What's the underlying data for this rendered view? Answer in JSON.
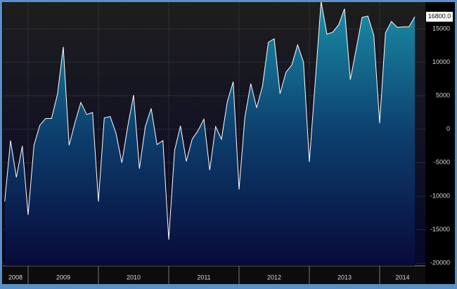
{
  "chart_data": {
    "type": "area",
    "x": [
      2008.667,
      2008.75,
      2008.833,
      2008.917,
      2009.0,
      2009.083,
      2009.167,
      2009.25,
      2009.333,
      2009.417,
      2009.5,
      2009.583,
      2009.667,
      2009.75,
      2009.833,
      2009.917,
      2010.0,
      2010.083,
      2010.167,
      2010.25,
      2010.333,
      2010.417,
      2010.5,
      2010.583,
      2010.667,
      2010.75,
      2010.833,
      2010.917,
      2011.0,
      2011.083,
      2011.167,
      2011.25,
      2011.333,
      2011.417,
      2011.5,
      2011.583,
      2011.667,
      2011.75,
      2011.833,
      2011.917,
      2012.0,
      2012.083,
      2012.167,
      2012.25,
      2012.333,
      2012.417,
      2012.5,
      2012.583,
      2012.667,
      2012.75,
      2012.833,
      2012.917,
      2013.0,
      2013.083,
      2013.167,
      2013.25,
      2013.333,
      2013.417,
      2013.5,
      2013.583,
      2013.667,
      2013.75,
      2013.833,
      2013.917,
      2014.0,
      2014.083,
      2014.167,
      2014.25,
      2014.333,
      2014.417,
      2014.5
    ],
    "values": [
      -10800,
      -1700,
      -7200,
      -2500,
      -12800,
      -2400,
      600,
      1600,
      1600,
      5200,
      12300,
      -2400,
      1000,
      4000,
      2200,
      2500,
      -10800,
      1700,
      1900,
      -600,
      -5000,
      400,
      5100,
      -5900,
      400,
      3100,
      -2300,
      -1700,
      -16500,
      -3200,
      500,
      -4800,
      -1500,
      -200,
      1500,
      -6100,
      400,
      -1500,
      4100,
      7100,
      -9000,
      1800,
      6800,
      3200,
      6400,
      13000,
      13500,
      5300,
      8500,
      9600,
      12600,
      10000,
      -4900,
      7000,
      19100,
      14200,
      14500,
      15600,
      18000,
      7400,
      12000,
      16700,
      16900,
      14000,
      900,
      14400,
      16100,
      15200,
      15300,
      15300,
      16800
    ],
    "value_labels": [
      null,
      null,
      null,
      null,
      null,
      null,
      null,
      null,
      null,
      null,
      null,
      null,
      null,
      null,
      null,
      null,
      null,
      null,
      null,
      null,
      null,
      null,
      null,
      null,
      null,
      null,
      null,
      null,
      null,
      null,
      null,
      null,
      null,
      null,
      null,
      null,
      null,
      null,
      null,
      null,
      null,
      null,
      null,
      null,
      null,
      null,
      null,
      null,
      null,
      null,
      null,
      null,
      null,
      null,
      null,
      null,
      null,
      null,
      null,
      null,
      null,
      null,
      null,
      null,
      null,
      null,
      null,
      null,
      null,
      null,
      "16800.0"
    ],
    "line_color": "#ffffff",
    "color": "#1a8aa6",
    "xlim": [
      2008.64,
      2014.65
    ],
    "xticks": [
      2008,
      2009,
      2010,
      2011,
      2012,
      2013,
      2014
    ],
    "ylim": [
      -20400,
      19300
    ],
    "yticks": [
      15000,
      10000,
      5000,
      0,
      -5000,
      -10000,
      -15000,
      -20000
    ],
    "grid": true
  }
}
